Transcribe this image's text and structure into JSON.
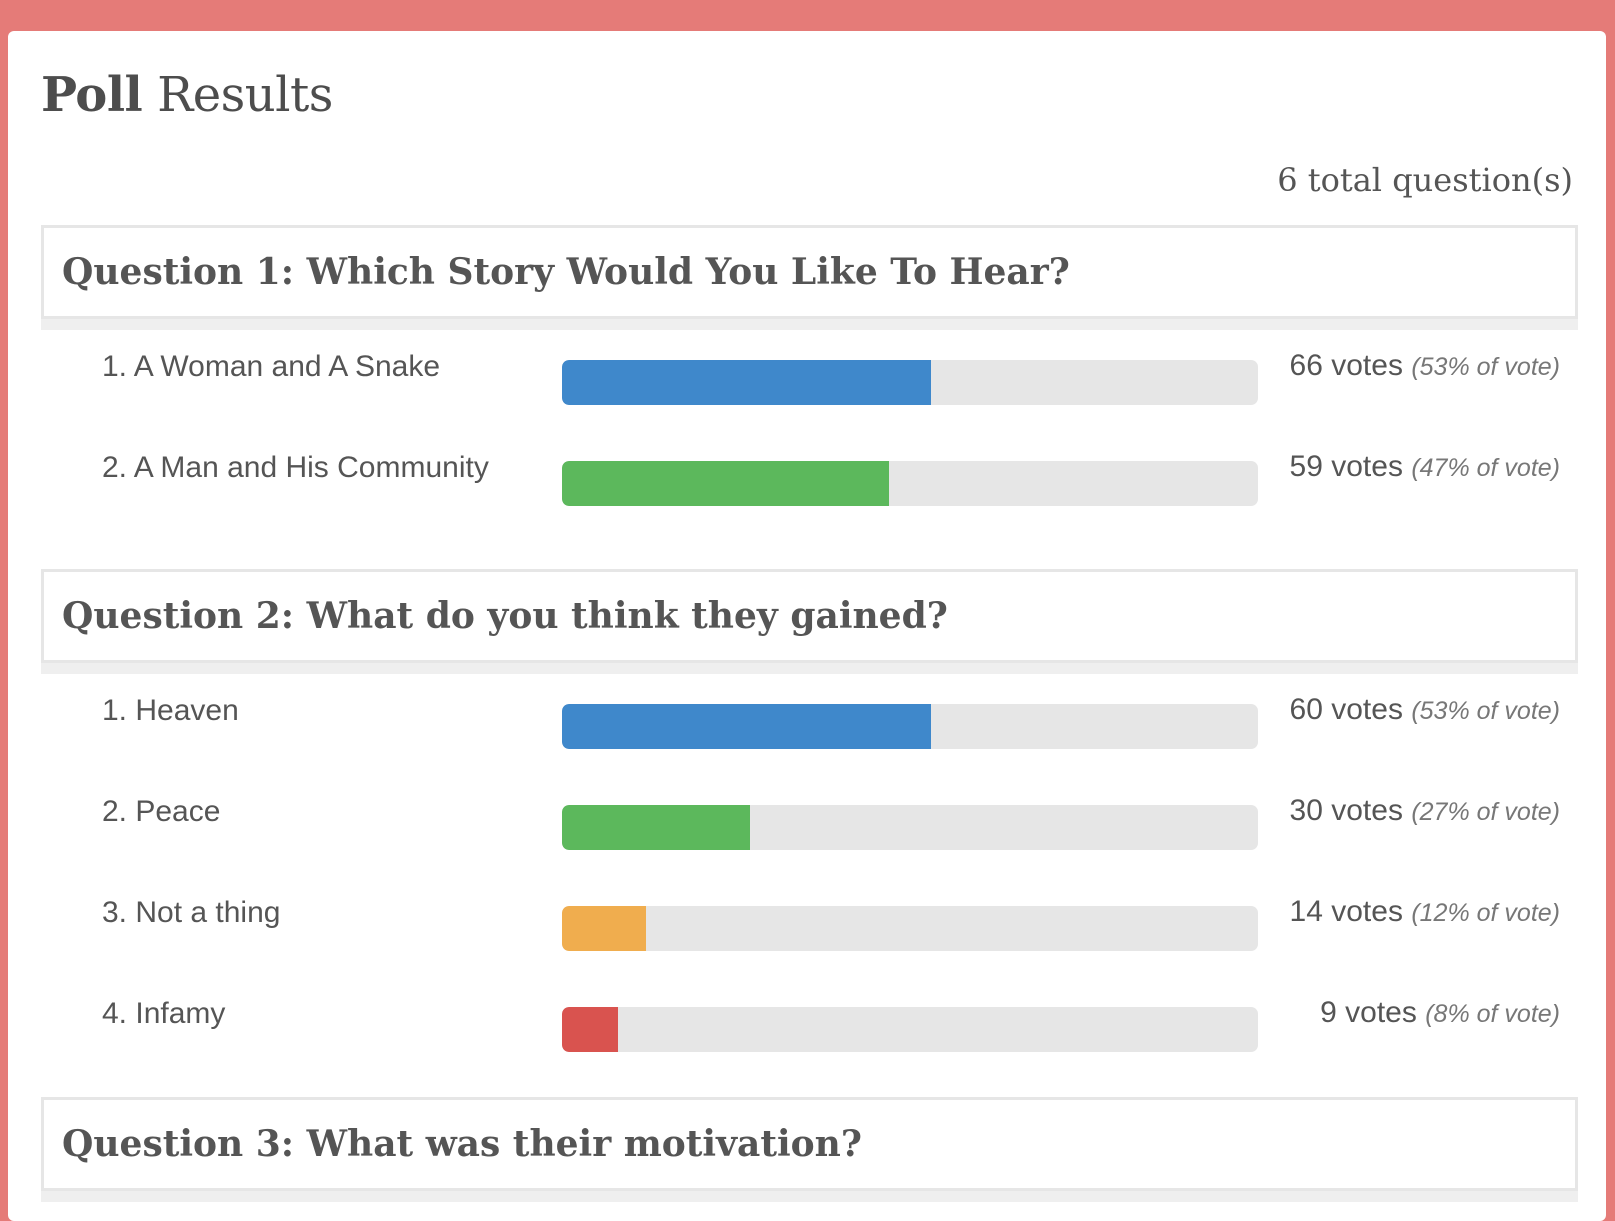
{
  "page": {
    "title_strong": "Poll",
    "title_rest": "Results"
  },
  "total_questions": "6 total question(s)",
  "questions": [
    {
      "title": "Question 1: Which Story Would You Like To Hear?",
      "answers": [
        {
          "label": "1. A Woman and A Snake",
          "votes": "66 votes",
          "pct_text": "(53% of vote)",
          "fraction": 0.53,
          "color": "#3f88cb"
        },
        {
          "label": "2. A Man and His Community",
          "votes": "59 votes",
          "pct_text": "(47% of vote)",
          "fraction": 0.47,
          "color": "#5cb85c"
        }
      ]
    },
    {
      "title": "Question 2: What do you think they gained?",
      "answers": [
        {
          "label": "1. Heaven",
          "votes": "60 votes",
          "pct_text": "(53% of vote)",
          "fraction": 0.53,
          "color": "#3f88cb"
        },
        {
          "label": "2. Peace",
          "votes": "30 votes",
          "pct_text": "(27% of vote)",
          "fraction": 0.27,
          "color": "#5cb85c"
        },
        {
          "label": "3. Not a thing",
          "votes": "14 votes",
          "pct_text": "(12% of vote)",
          "fraction": 0.12,
          "color": "#f0ad4e"
        },
        {
          "label": "4. Infamy",
          "votes": "9 votes",
          "pct_text": "(8% of vote)",
          "fraction": 0.08,
          "color": "#d9534f"
        }
      ]
    },
    {
      "title": "Question 3: What was their motivation?",
      "answers": []
    }
  ]
}
